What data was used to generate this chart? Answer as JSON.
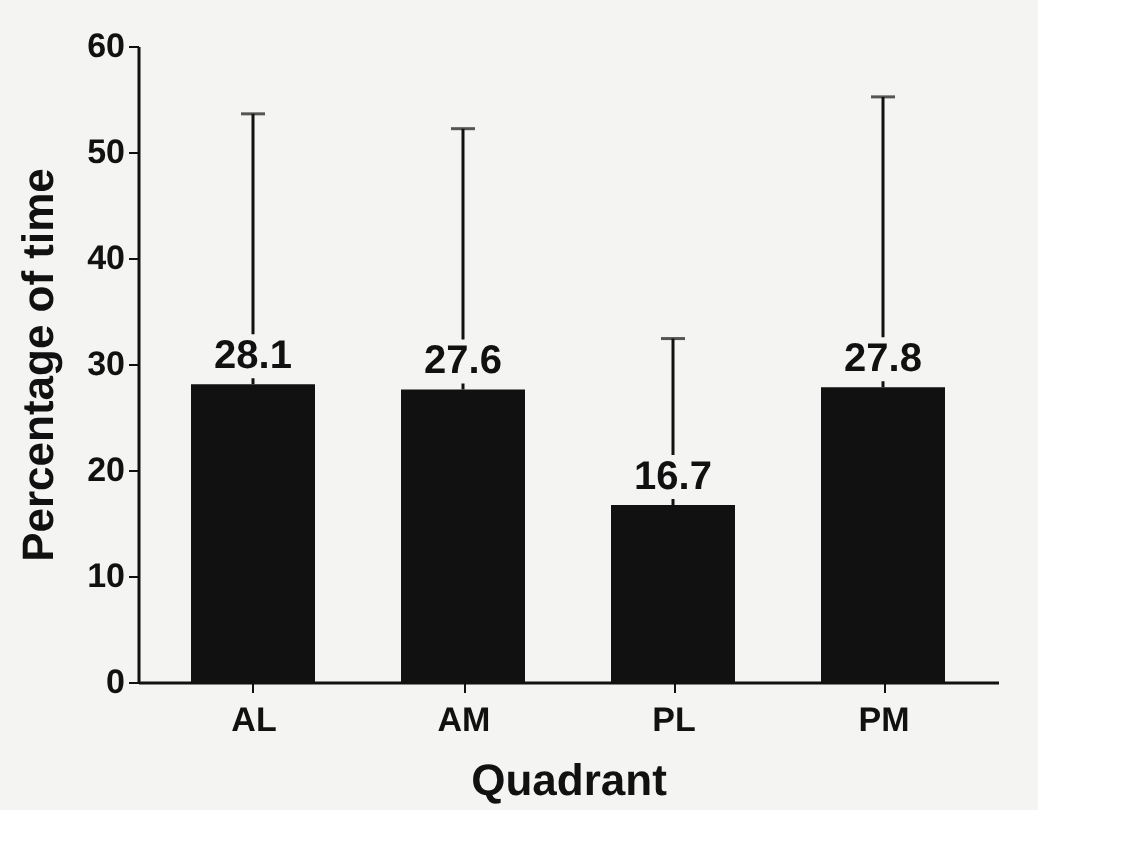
{
  "chart_data": {
    "type": "bar",
    "xlabel": "Quadrant",
    "ylabel": "Percentage of time",
    "categories": [
      "AL",
      "AM",
      "PL",
      "PM"
    ],
    "values": [
      28.1,
      27.6,
      16.7,
      27.8
    ],
    "errors": [
      [
        28.1,
        53.6
      ],
      [
        27.6,
        52.2
      ],
      [
        16.7,
        32.4
      ],
      [
        27.8,
        55.2
      ]
    ],
    "color": "#111111",
    "data_labels": true,
    "ylim": [
      0,
      60
    ],
    "yticks": [
      0,
      10,
      20,
      30,
      40,
      50,
      60
    ],
    "grid": false
  }
}
